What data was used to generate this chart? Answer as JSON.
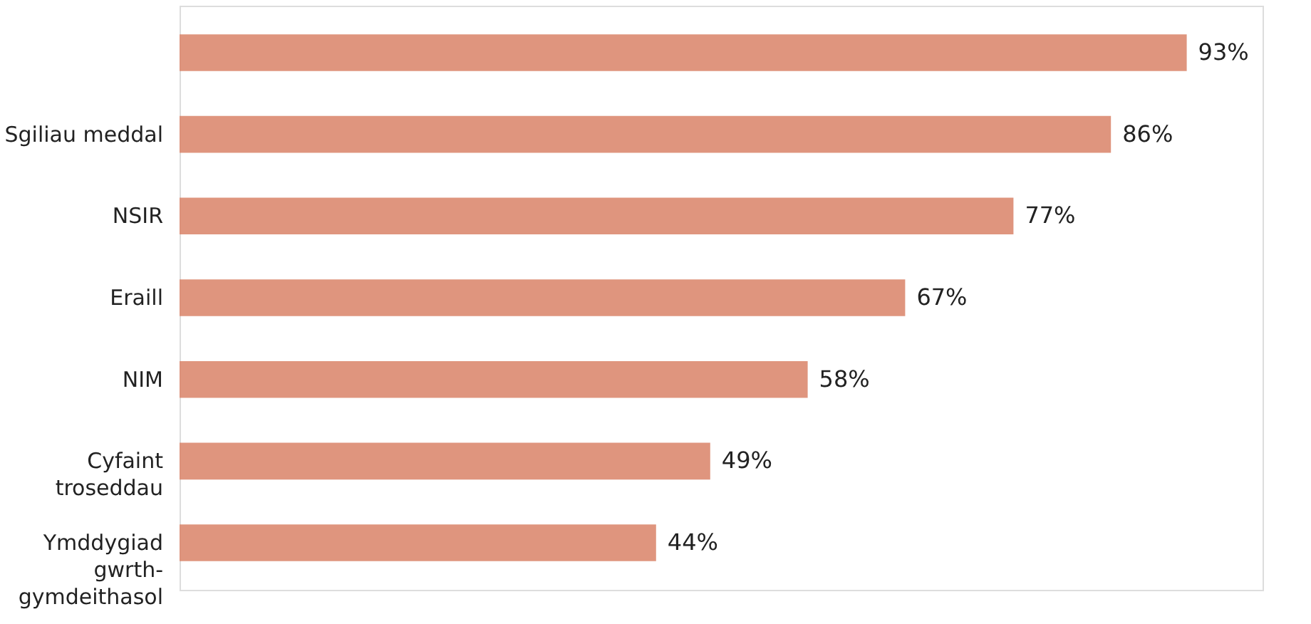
{
  "chart_data": {
    "type": "bar",
    "orientation": "horizontal",
    "categories": [
      null,
      "Sgiliau meddal",
      "NSIR",
      "Eraill",
      "NIM",
      "Cyfaint troseddau",
      "Ymddygiad gwrth-gymdeithasol"
    ],
    "values": [
      93,
      86,
      77,
      67,
      58,
      49,
      44
    ],
    "color": "#dc8a70",
    "value_labels": [
      "93%",
      "86%",
      "77%",
      "67%",
      "58%",
      "49%",
      "44%"
    ]
  }
}
